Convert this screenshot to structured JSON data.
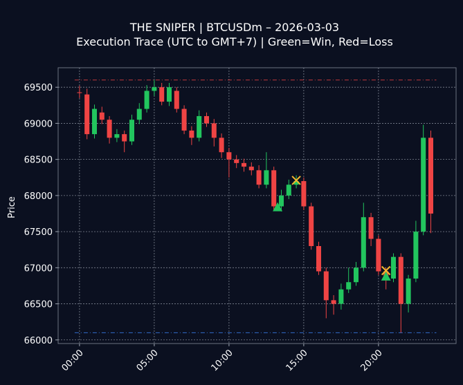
{
  "chart_data": {
    "type": "candlestick",
    "title": "THE SNIPER | BTCUSDm – 2026-03-03",
    "subtitle": "Execution Trace (UTC to GMT+7) | Green=Win, Red=Loss",
    "y_label": "Price",
    "x": [
      0,
      0.5,
      1,
      1.5,
      2,
      2.5,
      3,
      3.5,
      4,
      4.5,
      5,
      5.5,
      6,
      6.5,
      7,
      7.5,
      8,
      8.5,
      9,
      9.5,
      10,
      10.5,
      11,
      11.5,
      12,
      12.5,
      13,
      13.5,
      14,
      14.5,
      15,
      15.5,
      16,
      16.5,
      17,
      17.5,
      18,
      18.5,
      19,
      19.5,
      20,
      20.5,
      21,
      21.5,
      22,
      22.5,
      23,
      23.5
    ],
    "open": [
      69430,
      69400,
      68850,
      69150,
      69050,
      68800,
      68850,
      68750,
      69050,
      69200,
      69450,
      69500,
      69300,
      69450,
      69200,
      68900,
      68800,
      69100,
      69000,
      68800,
      68600,
      68500,
      68450,
      68400,
      68350,
      68150,
      68350,
      67850,
      68000,
      68150,
      68200,
      67850,
      67300,
      66950,
      66550,
      66500,
      66700,
      66800,
      67000,
      67700,
      67400,
      66950,
      66850,
      67150,
      66500,
      66850,
      67500,
      68800
    ],
    "high": [
      69520,
      69480,
      69260,
      69230,
      69100,
      68920,
      68900,
      69120,
      69280,
      69530,
      69600,
      69560,
      69560,
      69500,
      69250,
      68960,
      69180,
      69150,
      69060,
      68860,
      68660,
      68560,
      68510,
      68460,
      68420,
      68600,
      68400,
      68080,
      68220,
      68280,
      68250,
      67900,
      67360,
      67000,
      66620,
      66780,
      67000,
      67080,
      67900,
      67760,
      67450,
      67000,
      67200,
      67200,
      66900,
      67650,
      68980,
      68900
    ],
    "low": [
      69350,
      68780,
      68790,
      68990,
      68720,
      68740,
      68600,
      68700,
      68990,
      69150,
      69380,
      69250,
      69240,
      69150,
      68850,
      68700,
      68750,
      68950,
      68680,
      68520,
      68250,
      68380,
      68330,
      68280,
      68100,
      68100,
      67800,
      67780,
      67950,
      68100,
      67800,
      67250,
      66900,
      66300,
      66350,
      66420,
      66650,
      66750,
      66950,
      67300,
      66900,
      66700,
      66800,
      66100,
      66380,
      66800,
      67450,
      67480
    ],
    "close": [
      69420,
      68850,
      69200,
      69050,
      68800,
      68850,
      68750,
      69050,
      69200,
      69450,
      69500,
      69300,
      69500,
      69200,
      68900,
      68800,
      69100,
      69000,
      68800,
      68600,
      68500,
      68450,
      68400,
      68350,
      68150,
      68350,
      67850,
      68000,
      68150,
      68200,
      67850,
      67300,
      66950,
      66550,
      66500,
      66700,
      66800,
      67000,
      67700,
      67400,
      66950,
      66850,
      67150,
      66500,
      66850,
      67500,
      68800,
      67750
    ],
    "up_color": "#22c55e",
    "down_color": "#ef4444",
    "hlines": [
      {
        "value": 69600,
        "color": "#ef4444"
      },
      {
        "value": 66100,
        "color": "#3b82f6"
      }
    ],
    "entries": {
      "x": [
        13.25,
        20.5
      ],
      "values": [
        67840,
        66880
      ],
      "color": "#22c55e"
    },
    "exits": {
      "x": [
        14.5,
        20.5
      ],
      "values": [
        68210,
        66960
      ],
      "color": "#f5b82e"
    },
    "xlim": [
      -1.43,
      25.19
    ],
    "ylim": [
      65950,
      69770
    ],
    "xticks": [
      {
        "value": 0,
        "label": "00:00"
      },
      {
        "value": 5,
        "label": "05:00"
      },
      {
        "value": 10,
        "label": "10:00"
      },
      {
        "value": 15,
        "label": "15:00"
      },
      {
        "value": 20,
        "label": "20:00"
      }
    ],
    "yticks": [
      66000,
      66500,
      67000,
      67500,
      68000,
      68500,
      69000,
      69500
    ],
    "grid": true
  }
}
